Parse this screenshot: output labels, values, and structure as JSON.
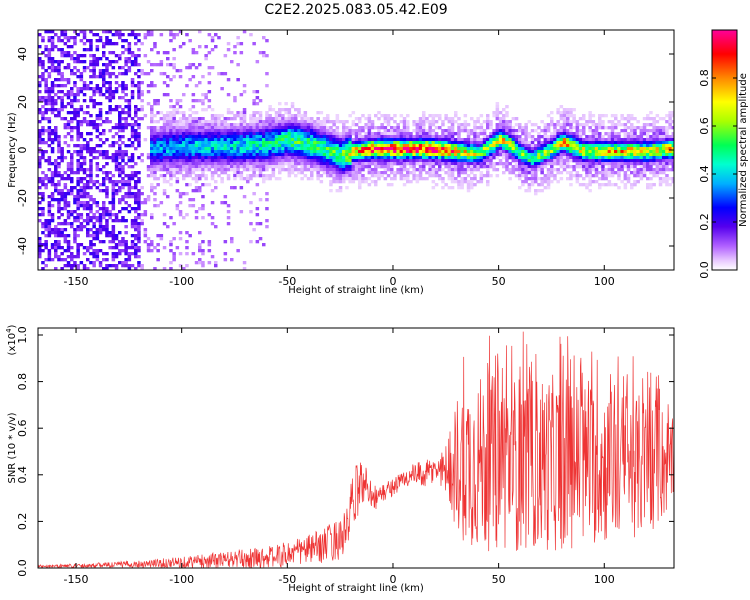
{
  "title": "C2E2.2025.083.05.42.E09",
  "chart_data": [
    {
      "type": "heatmap",
      "name": "spectrogram",
      "title": "C2E2.2025.083.05.42.E09",
      "xlabel": "Height of straight line (km)",
      "ylabel": "Frequency (Hz)",
      "xlim": [
        -168,
        133
      ],
      "ylim": [
        -50,
        50
      ],
      "xticks": [
        -150,
        -100,
        -50,
        0,
        50,
        100
      ],
      "yticks": [
        -40,
        -20,
        0,
        20,
        40
      ],
      "colorbar": {
        "label": "Normalized spectral amplitude",
        "range": [
          0,
          1
        ],
        "ticks": [
          "0.0",
          "0.2",
          "0.4",
          "0.6",
          "0.8"
        ],
        "tick_values": [
          0.0,
          0.2,
          0.4,
          0.6,
          0.8
        ],
        "colors": [
          "#ffffff",
          "#cc66ff",
          "#5500ee",
          "#0000ff",
          "#00ccff",
          "#00ff66",
          "#ffff00",
          "#ff8800",
          "#ff0000",
          "#ff00aa"
        ]
      },
      "ridge": {
        "x": [
          -115,
          -100,
          -80,
          -60,
          -50,
          -40,
          -30,
          -25,
          -20,
          -10,
          0,
          10,
          20,
          30,
          40,
          45,
          50,
          55,
          60,
          65,
          70,
          75,
          80,
          85,
          90,
          100,
          110,
          120,
          130
        ],
        "freq": [
          1,
          2,
          2,
          3,
          5,
          3,
          0,
          -2,
          0,
          1,
          1,
          1,
          1,
          0,
          -1,
          2,
          5,
          3,
          -1,
          -3,
          -1,
          1,
          4,
          2,
          0,
          0,
          0,
          0,
          1
        ],
        "amplitude": [
          0.35,
          0.38,
          0.4,
          0.45,
          0.5,
          0.5,
          0.5,
          0.55,
          0.7,
          0.9,
          0.95,
          0.9,
          0.95,
          0.75,
          0.6,
          0.65,
          0.7,
          0.65,
          0.55,
          0.5,
          0.55,
          0.6,
          0.75,
          0.7,
          0.65,
          0.7,
          0.75,
          0.7,
          0.7
        ]
      },
      "noise_floor_region_km": [
        -168,
        -60
      ]
    },
    {
      "type": "line",
      "name": "snr",
      "xlabel": "Height of straight line (km)",
      "ylabel": "SNR (10 * v/v)",
      "y_multiplier": "(x10",
      "y_multiplier_exp": "4",
      "xlim": [
        -168,
        133
      ],
      "ylim": [
        0.0,
        1.03
      ],
      "xticks": [
        -150,
        -100,
        -50,
        0,
        50,
        100
      ],
      "yticks": [
        "0.0",
        "0.2",
        "0.4",
        "0.6",
        "0.8",
        "1.0"
      ],
      "ytick_values": [
        0.0,
        0.2,
        0.4,
        0.6,
        0.8,
        1.0
      ],
      "color": "#ee3333",
      "envelope": {
        "x": [
          -168,
          -150,
          -130,
          -110,
          -90,
          -70,
          -55,
          -45,
          -35,
          -27,
          -22,
          -20,
          -17,
          -15,
          -12,
          -8,
          -5,
          0,
          5,
          10,
          15,
          20,
          25,
          30,
          35,
          40,
          50,
          60,
          70,
          80,
          90,
          100,
          110,
          120,
          128,
          133
        ],
        "mean": [
          0.008,
          0.01,
          0.015,
          0.02,
          0.03,
          0.04,
          0.05,
          0.07,
          0.09,
          0.12,
          0.15,
          0.25,
          0.33,
          0.37,
          0.35,
          0.3,
          0.32,
          0.35,
          0.38,
          0.4,
          0.4,
          0.42,
          0.43,
          0.45,
          0.46,
          0.45,
          0.45,
          0.45,
          0.45,
          0.45,
          0.45,
          0.44,
          0.44,
          0.44,
          0.45,
          0.45
        ],
        "spread": [
          0.006,
          0.008,
          0.012,
          0.02,
          0.03,
          0.04,
          0.05,
          0.06,
          0.07,
          0.09,
          0.1,
          0.12,
          0.12,
          0.1,
          0.08,
          0.05,
          0.04,
          0.04,
          0.04,
          0.05,
          0.06,
          0.06,
          0.1,
          0.3,
          0.36,
          0.38,
          0.38,
          0.38,
          0.38,
          0.38,
          0.36,
          0.34,
          0.32,
          0.3,
          0.25,
          0.15
        ]
      }
    }
  ]
}
